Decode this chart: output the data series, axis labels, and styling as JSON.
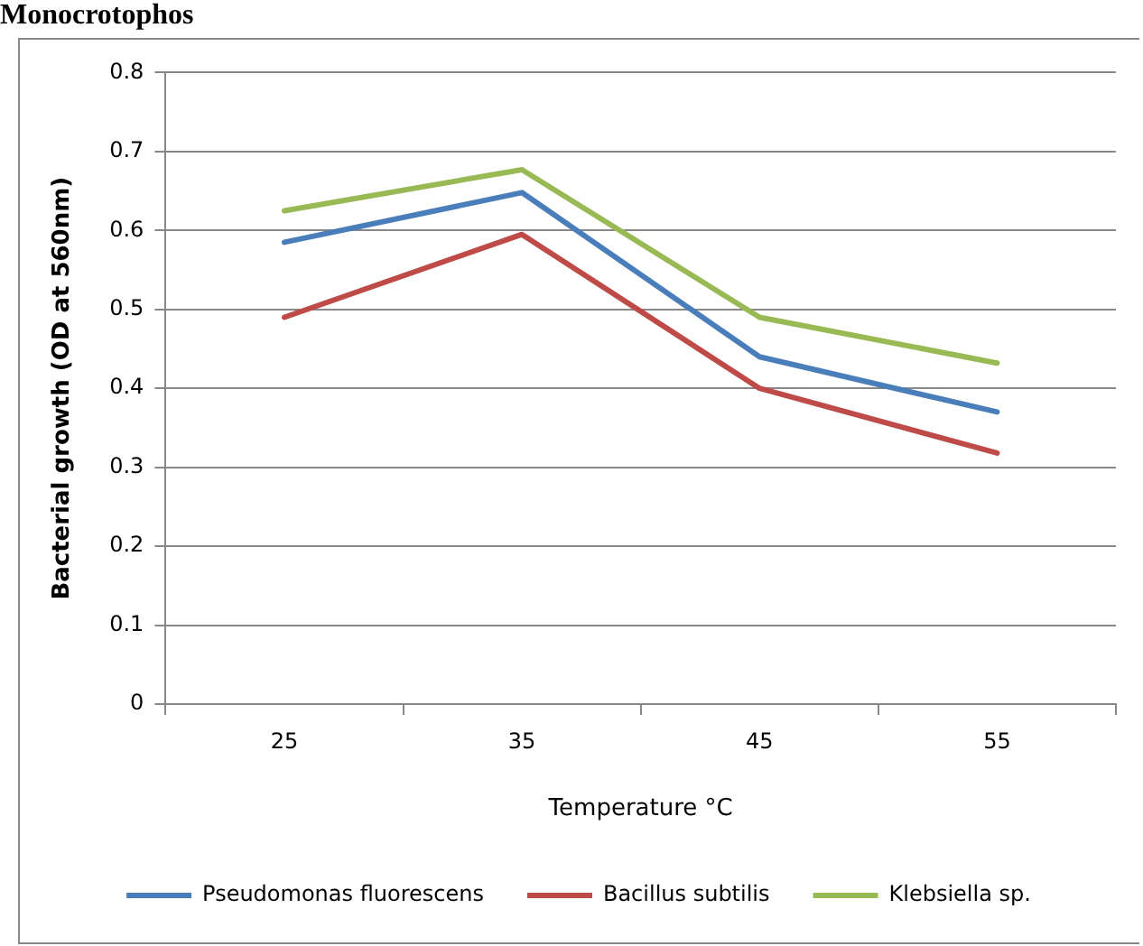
{
  "chart_data": {
    "type": "line",
    "title": "Monocrotophos",
    "xlabel": "Temperature °C",
    "ylabel": "Bacterial growth (OD at 560nm)",
    "categories": [
      "25",
      "35",
      "45",
      "55"
    ],
    "series": [
      {
        "name": "Pseudomonas fluorescens",
        "color": "#4a7ebb",
        "values": [
          0.585,
          0.648,
          0.44,
          0.37
        ]
      },
      {
        "name": "Bacillus subtilis",
        "color": "#be4b48",
        "values": [
          0.49,
          0.595,
          0.4,
          0.318
        ]
      },
      {
        "name": "Klebsiella sp.",
        "color": "#98b954",
        "values": [
          0.625,
          0.677,
          0.49,
          0.432
        ]
      }
    ],
    "ylim": [
      0,
      0.8
    ],
    "yticks": [
      0,
      0.1,
      0.2,
      0.3,
      0.4,
      0.5,
      0.6,
      0.7,
      0.8
    ],
    "grid": "y",
    "legend": "bottom",
    "marker": "none",
    "line_style": "solid"
  }
}
